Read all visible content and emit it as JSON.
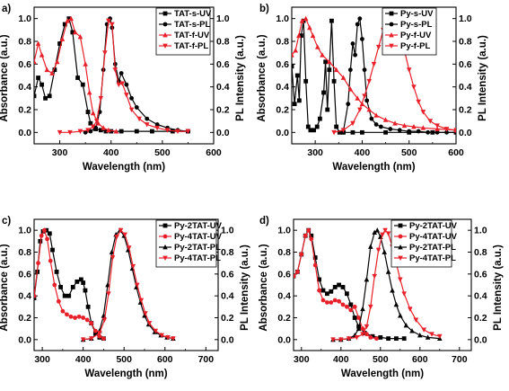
{
  "chart_data": [
    {
      "panel_label": "a)",
      "type": "line",
      "xlabel": "Wavelength (nm)",
      "ylabel": "Absorbance (a.u.)",
      "y2label": "PL Intensity (a.u.)",
      "xlim": [
        250,
        600
      ],
      "ylim": [
        -0.1,
        1.1
      ],
      "xticks": [
        "300",
        "400",
        "500",
        "600"
      ],
      "yticks": [
        "0.0",
        "0.2",
        "0.4",
        "0.6",
        "0.8",
        "1.0"
      ],
      "legend_position": "top-right",
      "series": [
        {
          "name": "TAT-s-UV",
          "color": "#000000",
          "marker": "square",
          "x": [
            250,
            258,
            265,
            272,
            280,
            290,
            300,
            310,
            318,
            325,
            335,
            345,
            355,
            360,
            370,
            380,
            390,
            400,
            420,
            450,
            480,
            520,
            550
          ],
          "y": [
            0.32,
            0.48,
            0.42,
            0.3,
            0.32,
            0.55,
            0.78,
            0.95,
            1.0,
            0.88,
            0.48,
            0.42,
            0.18,
            0.08,
            0.03,
            0.02,
            0.01,
            0.01,
            0.01,
            0.01,
            0.01,
            0.01,
            0.01
          ]
        },
        {
          "name": "TAT-s-PL",
          "color": "#000000",
          "marker": "circle",
          "x": [
            350,
            360,
            370,
            378,
            385,
            392,
            398,
            402,
            408,
            415,
            420,
            430,
            440,
            450,
            470,
            490,
            510,
            530,
            550
          ],
          "y": [
            0.0,
            0.01,
            0.04,
            0.18,
            0.55,
            0.95,
            1.0,
            0.92,
            0.6,
            0.45,
            0.52,
            0.42,
            0.3,
            0.22,
            0.12,
            0.07,
            0.04,
            0.02,
            0.01
          ]
        },
        {
          "name": "TAT-f-UV",
          "color": "#e8202a",
          "marker": "triangle-up",
          "x": [
            250,
            258,
            265,
            275,
            285,
            295,
            305,
            315,
            322,
            330,
            340,
            350,
            358,
            365,
            375,
            385,
            395,
            410
          ],
          "y": [
            0.62,
            0.78,
            0.68,
            0.55,
            0.52,
            0.62,
            0.82,
            0.98,
            1.0,
            0.88,
            0.84,
            0.6,
            0.35,
            0.17,
            0.08,
            0.04,
            0.02,
            0.01
          ]
        },
        {
          "name": "TAT-f-PL",
          "color": "#e8202a",
          "marker": "triangle-down",
          "x": [
            300,
            320,
            340,
            355,
            365,
            372,
            380,
            388,
            395,
            402,
            408,
            415,
            422,
            430,
            440,
            455,
            470,
            490,
            510,
            530,
            550
          ],
          "y": [
            0.0,
            0.0,
            0.01,
            0.02,
            0.05,
            0.1,
            0.3,
            0.7,
            0.98,
            0.95,
            0.55,
            0.42,
            0.43,
            0.33,
            0.2,
            0.12,
            0.07,
            0.04,
            0.02,
            0.01,
            0.01
          ]
        }
      ]
    },
    {
      "panel_label": "b)",
      "type": "line",
      "xlabel": "Wavelength (nm)",
      "ylabel": "Absorbance (a.u.)",
      "y2label": "PL Intensity (a.u.)",
      "xlim": [
        250,
        600
      ],
      "ylim": [
        -0.1,
        1.1
      ],
      "xticks": [
        "300",
        "400",
        "500",
        "600"
      ],
      "yticks": [
        "0.0",
        "0.2",
        "0.4",
        "0.6",
        "0.8",
        "1.0"
      ],
      "legend_position": "top-right",
      "series": [
        {
          "name": "Py-s-UV",
          "color": "#000000",
          "marker": "square",
          "x": [
            250,
            256,
            262,
            266,
            270,
            275,
            280,
            285,
            290,
            297,
            304,
            310,
            318,
            322,
            326,
            330,
            335,
            340,
            345,
            352,
            360,
            380,
            400,
            450,
            500,
            550,
            600
          ],
          "y": [
            0.58,
            0.25,
            0.5,
            0.28,
            0.85,
            0.98,
            0.45,
            0.05,
            0.02,
            0.02,
            0.05,
            0.12,
            0.35,
            0.62,
            0.2,
            0.55,
            0.98,
            0.45,
            0.05,
            0.0,
            0.0,
            0.0,
            0.0,
            0.0,
            0.0,
            0.0,
            0.0
          ]
        },
        {
          "name": "Py-s-PL",
          "color": "#000000",
          "marker": "circle",
          "x": [
            360,
            370,
            375,
            380,
            385,
            390,
            395,
            400,
            405,
            410,
            420,
            430,
            440,
            460,
            480,
            500,
            520,
            540,
            560,
            580,
            600
          ],
          "y": [
            0.01,
            0.25,
            0.55,
            0.78,
            0.68,
            0.95,
            1.0,
            0.82,
            0.55,
            0.28,
            0.12,
            0.07,
            0.05,
            0.03,
            0.02,
            0.01,
            0.01,
            0.0,
            0.0,
            0.0,
            0.0
          ]
        },
        {
          "name": "Py-f-UV",
          "color": "#e8202a",
          "marker": "triangle-up",
          "x": [
            250,
            258,
            265,
            272,
            280,
            288,
            295,
            305,
            315,
            330,
            345,
            360,
            375,
            390,
            400,
            415,
            430,
            450,
            470,
            490,
            510,
            530,
            560,
            600
          ],
          "y": [
            0.68,
            0.72,
            0.85,
            0.98,
            1.0,
            0.92,
            0.85,
            0.75,
            0.68,
            0.62,
            0.55,
            0.48,
            0.38,
            0.3,
            0.25,
            0.2,
            0.15,
            0.11,
            0.08,
            0.06,
            0.05,
            0.04,
            0.03,
            0.02
          ]
        },
        {
          "name": "Py-f-PL",
          "color": "#e8202a",
          "marker": "triangle-down",
          "x": [
            340,
            360,
            380,
            395,
            405,
            415,
            425,
            435,
            445,
            455,
            462,
            470,
            480,
            490,
            500,
            510,
            520,
            530,
            545,
            560,
            580,
            600
          ],
          "y": [
            0.0,
            0.02,
            0.08,
            0.2,
            0.32,
            0.45,
            0.6,
            0.75,
            0.9,
            0.98,
            1.0,
            0.97,
            0.88,
            0.72,
            0.55,
            0.4,
            0.27,
            0.18,
            0.1,
            0.06,
            0.03,
            0.02
          ]
        }
      ]
    },
    {
      "panel_label": "c)",
      "type": "line",
      "xlabel": "Wavelength (nm)",
      "ylabel": "Absorbance (a.u.)",
      "y2label": "PL Intensity (a.u.)",
      "xlim": [
        280,
        730
      ],
      "ylim": [
        -0.1,
        1.1
      ],
      "xticks": [
        "300",
        "400",
        "500",
        "600",
        "700"
      ],
      "yticks": [
        "0.0",
        "0.2",
        "0.4",
        "0.6",
        "0.8",
        "1.0"
      ],
      "legend_position": "top-right",
      "series": [
        {
          "name": "Py-2TAT-UV",
          "color": "#000000",
          "marker": "square",
          "x": [
            280,
            288,
            295,
            302,
            310,
            318,
            325,
            335,
            345,
            355,
            365,
            375,
            385,
            395,
            400,
            405,
            412,
            420,
            430,
            440,
            450
          ],
          "y": [
            0.38,
            0.62,
            0.9,
            0.99,
            1.0,
            0.97,
            0.82,
            0.62,
            0.48,
            0.4,
            0.4,
            0.48,
            0.53,
            0.55,
            0.52,
            0.45,
            0.3,
            0.15,
            0.06,
            0.02,
            0.01
          ]
        },
        {
          "name": "Py-4TAT-UV",
          "color": "#e8202a",
          "marker": "circle",
          "x": [
            280,
            290,
            298,
            305,
            312,
            320,
            330,
            340,
            350,
            360,
            370,
            380,
            390,
            400,
            410,
            420,
            430,
            440,
            450
          ],
          "y": [
            0.4,
            0.7,
            0.95,
            1.0,
            0.92,
            0.72,
            0.5,
            0.35,
            0.26,
            0.23,
            0.21,
            0.2,
            0.21,
            0.2,
            0.18,
            0.15,
            0.08,
            0.03,
            0.01
          ]
        },
        {
          "name": "Py-2TAT-PL",
          "color": "#000000",
          "marker": "triangle-up",
          "x": [
            400,
            420,
            440,
            450,
            460,
            470,
            480,
            490,
            500,
            510,
            520,
            530,
            540,
            550,
            560,
            575,
            590,
            605,
            620
          ],
          "y": [
            0.0,
            0.01,
            0.08,
            0.22,
            0.5,
            0.8,
            0.96,
            1.0,
            0.95,
            0.82,
            0.65,
            0.48,
            0.34,
            0.22,
            0.14,
            0.07,
            0.04,
            0.02,
            0.01
          ]
        },
        {
          "name": "Py-4TAT-PL",
          "color": "#e8202a",
          "marker": "triangle-down",
          "x": [
            400,
            420,
            440,
            452,
            462,
            472,
            482,
            492,
            502,
            512,
            522,
            532,
            542,
            552,
            562,
            577,
            592,
            607,
            620
          ],
          "y": [
            0.0,
            0.01,
            0.06,
            0.18,
            0.42,
            0.75,
            0.94,
            1.0,
            0.96,
            0.84,
            0.67,
            0.5,
            0.36,
            0.24,
            0.15,
            0.08,
            0.04,
            0.02,
            0.01
          ]
        }
      ]
    },
    {
      "panel_label": "d)",
      "type": "line",
      "xlabel": "Wavelength (nm)",
      "ylabel": "Absorbance (a.u.)",
      "y2label": "PL Intensity (a.u.)",
      "xlim": [
        280,
        730
      ],
      "ylim": [
        -0.1,
        1.1
      ],
      "xticks": [
        "300",
        "400",
        "500",
        "600",
        "700"
      ],
      "yticks": [
        "0.0",
        "0.2",
        "0.4",
        "0.6",
        "0.8",
        "1.0"
      ],
      "legend_position": "top-right",
      "series": [
        {
          "name": "Py-2TAT-UV",
          "color": "#000000",
          "marker": "square",
          "x": [
            280,
            290,
            300,
            310,
            318,
            325,
            335,
            345,
            355,
            365,
            375,
            385,
            395,
            405,
            415,
            425,
            435,
            445,
            460,
            480,
            500,
            520,
            540,
            560
          ],
          "y": [
            0.58,
            0.62,
            0.78,
            0.95,
            1.0,
            0.95,
            0.75,
            0.55,
            0.45,
            0.42,
            0.44,
            0.48,
            0.5,
            0.48,
            0.42,
            0.32,
            0.2,
            0.12,
            0.06,
            0.03,
            0.02,
            0.01,
            0.01,
            0.01
          ]
        },
        {
          "name": "Py-4TAT-UV",
          "color": "#e8202a",
          "marker": "circle",
          "x": [
            280,
            290,
            300,
            310,
            318,
            325,
            335,
            345,
            355,
            365,
            375,
            385,
            395,
            405,
            415,
            425,
            435,
            445,
            455,
            465,
            475,
            490
          ],
          "y": [
            0.58,
            0.62,
            0.78,
            0.95,
            1.0,
            0.92,
            0.68,
            0.45,
            0.36,
            0.34,
            0.34,
            0.36,
            0.35,
            0.32,
            0.3,
            0.27,
            0.3,
            0.2,
            0.1,
            0.05,
            0.02,
            0.01
          ]
        },
        {
          "name": "Py-2TAT-PL",
          "color": "#000000",
          "marker": "triangle-up",
          "x": [
            380,
            400,
            420,
            435,
            445,
            455,
            465,
            475,
            485,
            492,
            500,
            510,
            520,
            530,
            540,
            550,
            565,
            580,
            600,
            620,
            650
          ],
          "y": [
            0.0,
            0.0,
            0.01,
            0.04,
            0.1,
            0.28,
            0.55,
            0.85,
            0.98,
            1.0,
            0.94,
            0.8,
            0.62,
            0.45,
            0.32,
            0.22,
            0.13,
            0.08,
            0.04,
            0.02,
            0.01
          ]
        },
        {
          "name": "Py-4TAT-PL",
          "color": "#e8202a",
          "marker": "triangle-down",
          "x": [
            380,
            400,
            420,
            440,
            455,
            465,
            475,
            485,
            495,
            505,
            512,
            520,
            530,
            540,
            550,
            560,
            575,
            590,
            610,
            630,
            650
          ],
          "y": [
            0.0,
            0.0,
            0.01,
            0.02,
            0.05,
            0.12,
            0.3,
            0.58,
            0.82,
            0.96,
            1.0,
            0.97,
            0.85,
            0.7,
            0.55,
            0.42,
            0.28,
            0.18,
            0.09,
            0.05,
            0.03
          ]
        }
      ]
    }
  ]
}
